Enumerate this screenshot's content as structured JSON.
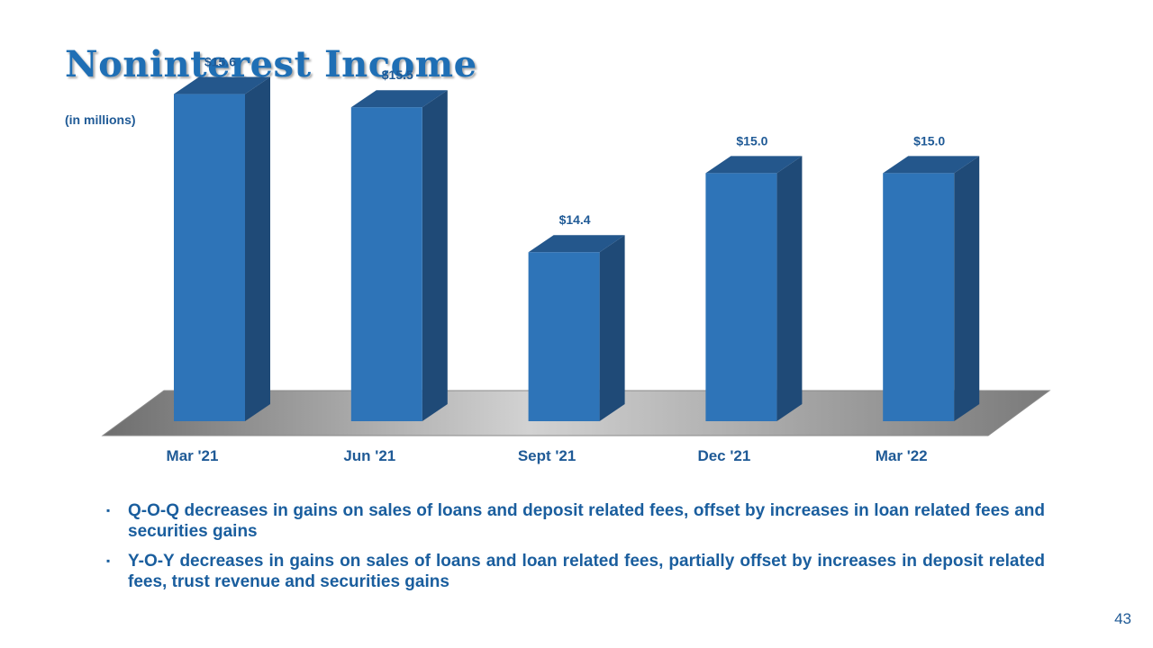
{
  "slide": {
    "title": "Noninterest Income",
    "subtitle": "(in millions)",
    "page_number": "43"
  },
  "bullets": [
    {
      "text": "Q-O-Q decreases in gains on sales of loans and deposit related fees, offset by increases in loan related fees and securities gains"
    },
    {
      "text": "Y-O-Y decreases in gains on sales of loans and loan related fees, partially offset by increases in deposit related fees, trust revenue and securities gains"
    }
  ],
  "bullet_symbol": "▪",
  "colors": {
    "title": "#1f6fb5",
    "bar_front": "#2e74b8",
    "bar_side": "#1f4a77",
    "bar_top": "#24578c",
    "labels": "#1f5a96"
  },
  "chart_data": {
    "type": "bar",
    "style": "3d-column",
    "categories": [
      "Mar '21",
      "Jun '21",
      "Sept '21",
      "Dec '21",
      "Mar '22"
    ],
    "values": [
      15.6,
      15.5,
      14.4,
      15.0,
      15.0
    ],
    "data_labels": [
      "$15.6",
      "$15.5",
      "$14.4",
      "$15.0",
      "$15.0"
    ],
    "title": "",
    "xlabel": "",
    "ylabel": "",
    "grid": false,
    "legend": "none"
  }
}
